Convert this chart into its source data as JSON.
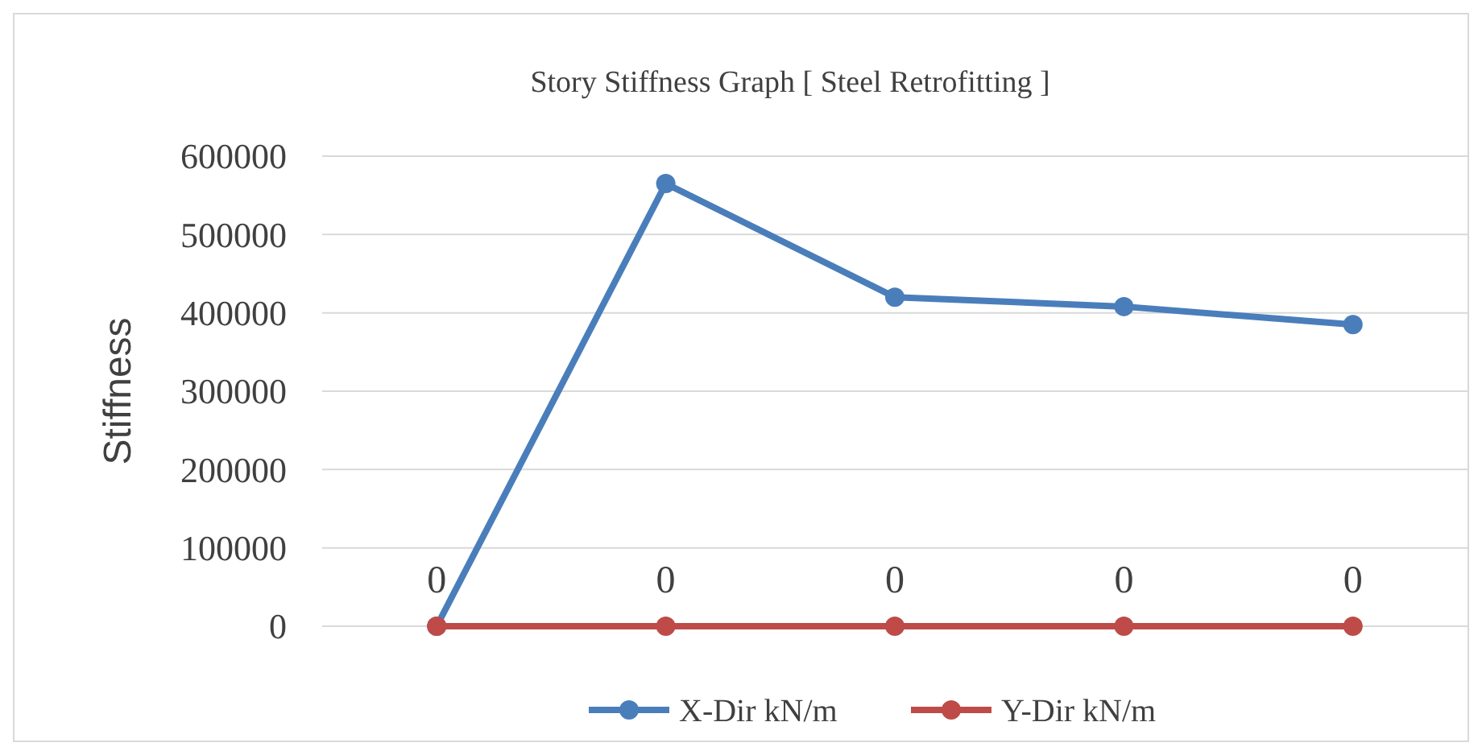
{
  "chart_data": {
    "type": "line",
    "title": "Story Stiffness Graph [ Steel Retrofitting ]",
    "ylabel": "Stiffness",
    "categories": [
      null,
      null,
      null,
      null,
      null
    ],
    "series": [
      {
        "name": "X-Dir kN/m",
        "color": "#4a7ebb",
        "values": [
          0,
          565000,
          420000,
          408000,
          385000
        ]
      },
      {
        "name": "Y-Dir  kN/m",
        "color": "#be4b48",
        "values": [
          0,
          0,
          0,
          0,
          0
        ],
        "value_labels": [
          "0",
          "0",
          "0",
          "0",
          "0"
        ]
      }
    ],
    "ylim": [
      0,
      600000
    ],
    "yticks": [
      0,
      100000,
      200000,
      300000,
      400000,
      500000,
      600000
    ],
    "grid": "y",
    "legend": "bottom",
    "marker": "circle",
    "line_style": "solid"
  }
}
